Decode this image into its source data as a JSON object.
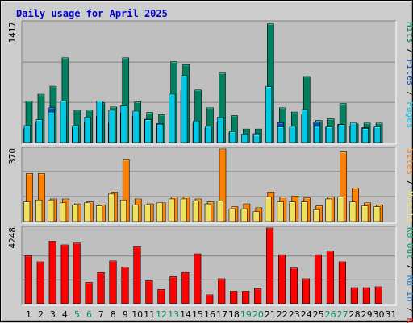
{
  "title": "Daily usage for April 2025",
  "colors": {
    "title": "#0000cc",
    "pages": "#00c8e6",
    "files": "#0050b4",
    "hits": "#008060",
    "visits": "#f0e060",
    "sites": "#ff8000",
    "kbin": "#2080d0",
    "kbout": "#00a060",
    "kbf": "#ff0000",
    "weekend": "#00906a",
    "weekday": "#000000"
  },
  "chart_data": [
    {
      "type": "bar",
      "panel": "hits",
      "ymax_label": "1417",
      "right_labels": [
        "Pages",
        "Files",
        "Hits"
      ],
      "categories": [
        "1",
        "2",
        "3",
        "4",
        "5",
        "6",
        "7",
        "8",
        "9",
        "10",
        "11",
        "12",
        "13",
        "14",
        "15",
        "16",
        "17",
        "18",
        "19",
        "20",
        "21",
        "22",
        "23",
        "24",
        "25",
        "26",
        "27",
        "28",
        "29",
        "30",
        "31"
      ],
      "ylim": [
        0,
        1417
      ],
      "series": [
        {
          "name": "Hits",
          "values": [
            490,
            570,
            665,
            1000,
            380,
            385,
            470,
            420,
            1000,
            480,
            355,
            330,
            955,
            920,
            620,
            410,
            820,
            320,
            160,
            160,
            1400,
            410,
            360,
            780,
            260,
            280,
            460,
            220,
            230,
            230,
            0
          ]
        },
        {
          "name": "Files",
          "values": [
            165,
            230,
            410,
            310,
            175,
            235,
            310,
            230,
            350,
            310,
            275,
            225,
            0,
            615,
            230,
            170,
            235,
            120,
            0,
            105,
            370,
            235,
            175,
            330,
            245,
            180,
            215,
            190,
            175,
            175,
            0
          ]
        },
        {
          "name": "Pages",
          "values": [
            200,
            270,
            360,
            490,
            200,
            300,
            490,
            380,
            440,
            370,
            270,
            210,
            570,
            790,
            255,
            190,
            300,
            130,
            100,
            90,
            660,
            185,
            190,
            390,
            190,
            185,
            210,
            230,
            165,
            185,
            0
          ]
        }
      ]
    },
    {
      "type": "bar",
      "panel": "visits",
      "ymax_label": "370",
      "right_labels": [
        "Visits",
        "Sites"
      ],
      "categories": [
        "1",
        "2",
        "3",
        "4",
        "5",
        "6",
        "7",
        "8",
        "9",
        "10",
        "11",
        "12",
        "13",
        "14",
        "15",
        "16",
        "17",
        "18",
        "19",
        "20",
        "21",
        "22",
        "23",
        "24",
        "25",
        "26",
        "27",
        "28",
        "29",
        "30",
        "31"
      ],
      "ylim": [
        0,
        370
      ],
      "series": [
        {
          "name": "Visits",
          "values": [
            100,
            110,
            110,
            95,
            85,
            95,
            80,
            140,
            110,
            85,
            85,
            95,
            115,
            115,
            105,
            90,
            105,
            65,
            65,
            50,
            125,
            100,
            100,
            100,
            60,
            115,
            125,
            100,
            80,
            75,
            0
          ]
        },
        {
          "name": "Sites",
          "values": [
            245,
            245,
            115,
            115,
            90,
            100,
            85,
            150,
            315,
            115,
            90,
            95,
            125,
            125,
            115,
            100,
            370,
            75,
            90,
            70,
            150,
            125,
            130,
            120,
            80,
            125,
            355,
            170,
            95,
            85,
            0
          ]
        }
      ]
    },
    {
      "type": "bar",
      "panel": "kbytes",
      "ymax_label": "4248",
      "right_labels": [
        "KB F",
        "KB In",
        "KB Out"
      ],
      "categories": [
        "1",
        "2",
        "3",
        "4",
        "5",
        "6",
        "7",
        "8",
        "9",
        "10",
        "11",
        "12",
        "13",
        "14",
        "15",
        "16",
        "17",
        "18",
        "19",
        "20",
        "21",
        "22",
        "23",
        "24",
        "25",
        "26",
        "27",
        "28",
        "29",
        "30",
        "31"
      ],
      "ylim": [
        0,
        4248
      ],
      "series": [
        {
          "name": "KB F",
          "values": [
            2700,
            2350,
            3500,
            3300,
            3400,
            1200,
            1750,
            2400,
            2050,
            3200,
            1300,
            800,
            1520,
            1750,
            2800,
            500,
            1400,
            700,
            700,
            850,
            4248,
            2750,
            2000,
            1400,
            2750,
            2950,
            2350,
            900,
            900,
            950,
            0
          ]
        }
      ]
    }
  ],
  "weekend_days": [
    5,
    6,
    12,
    13,
    19,
    20,
    26,
    27
  ]
}
